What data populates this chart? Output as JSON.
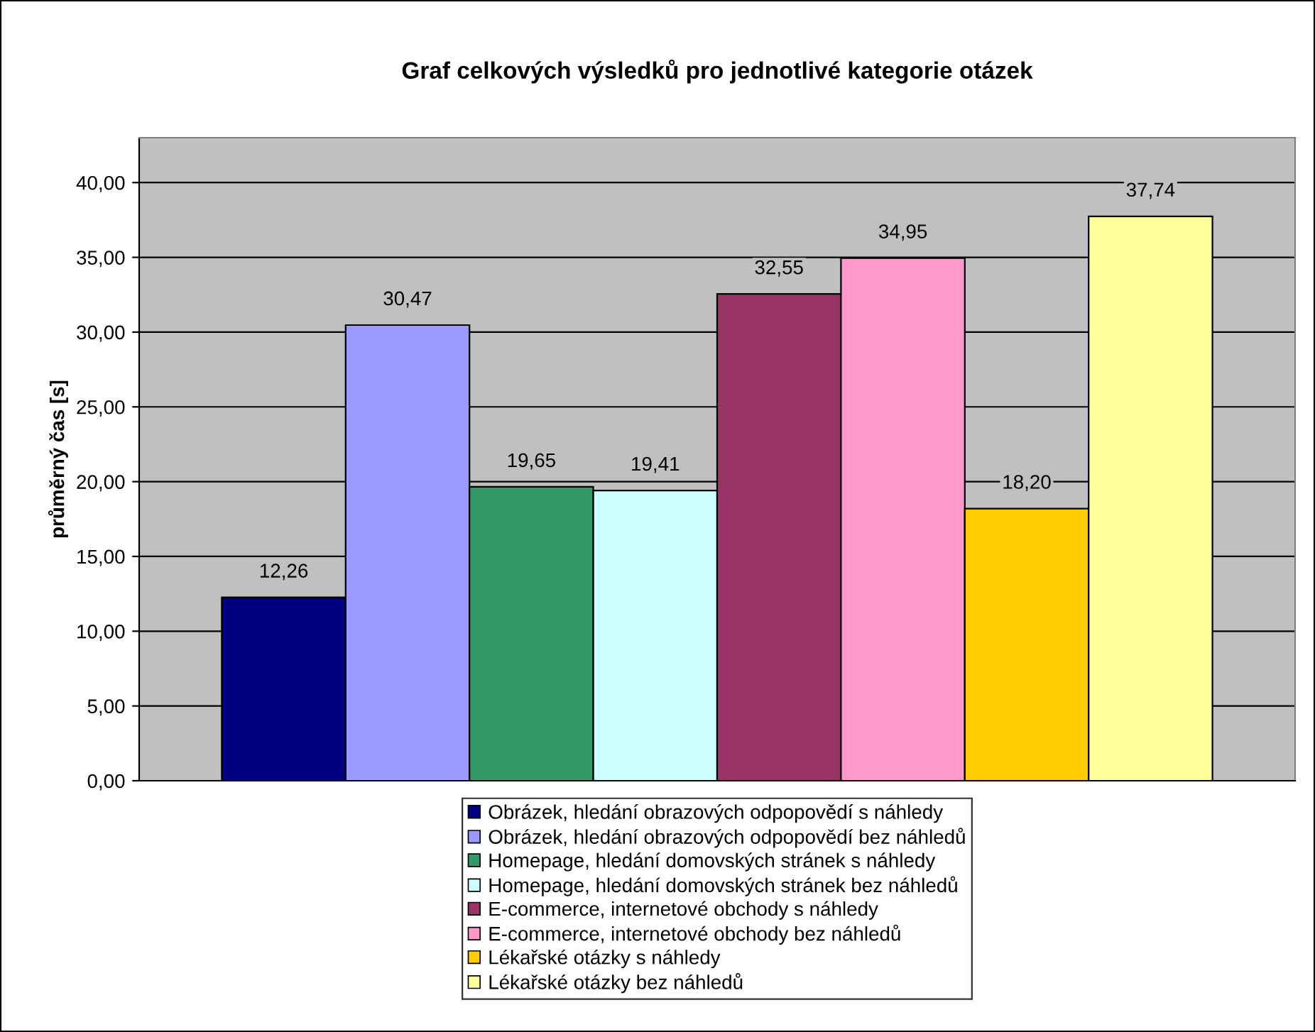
{
  "chart_data": {
    "type": "bar",
    "title": "Graf celkových výsledků pro jednotlivé kategorie otázek",
    "ylabel": "průměrný čas [s]",
    "categories": [
      null
    ],
    "series": [
      {
        "name": "Obrázek, hledání obrazových odpopovědí s náhledy",
        "color": "#000080",
        "values": [
          12.26
        ]
      },
      {
        "name": "Obrázek, hledání obrazových odpopovědí bez náhledů",
        "color": "#9999ff",
        "values": [
          30.47
        ]
      },
      {
        "name": "Homepage, hledání domovských stránek s náhledy",
        "color": "#339966",
        "values": [
          19.65
        ]
      },
      {
        "name": "Homepage, hledání domovských stránek bez náhledů",
        "color": "#ccffff",
        "values": [
          19.41
        ]
      },
      {
        "name": "E-commerce, internetové obchody s náhledy",
        "color": "#993366",
        "values": [
          32.55
        ]
      },
      {
        "name": "E-commerce, internetové obchody bez náhledů",
        "color": "#ff99cc",
        "values": [
          34.95
        ]
      },
      {
        "name": "Lékařské otázky s náhledy",
        "color": "#ffcc00",
        "values": [
          18.2
        ]
      },
      {
        "name": "Lékařské otázky bez náhledů",
        "color": "#ffff99",
        "values": [
          37.74
        ]
      }
    ],
    "value_labels": [
      "12,26",
      "30,47",
      "19,65",
      "19,41",
      "32,55",
      "34,95",
      "18,20",
      "37,74"
    ],
    "ylim": [
      0,
      43
    ],
    "yticks": [
      {
        "value": 0,
        "label": "0,00"
      },
      {
        "value": 5,
        "label": "5,00"
      },
      {
        "value": 10,
        "label": "10,00"
      },
      {
        "value": 15,
        "label": "15,00"
      },
      {
        "value": 20,
        "label": "20,00"
      },
      {
        "value": 25,
        "label": "25,00"
      },
      {
        "value": 30,
        "label": "30,00"
      },
      {
        "value": 35,
        "label": "35,00"
      },
      {
        "value": 40,
        "label": "40,00"
      }
    ],
    "grid": "y",
    "legend": "bottom"
  }
}
